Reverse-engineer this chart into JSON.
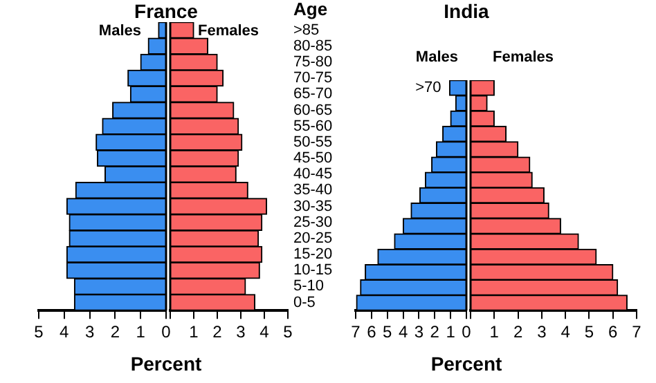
{
  "chart_data": [
    {
      "type": "bar",
      "orientation": "horizontal",
      "title": "France",
      "xlabel": "Percent",
      "grid": false,
      "categories": [
        null,
        null,
        null,
        null,
        null,
        null,
        null,
        null,
        null,
        null,
        null,
        null,
        null,
        null,
        null,
        null,
        null,
        null
      ],
      "series": [
        {
          "name": "Males",
          "color": "#3a8ef0",
          "values": [
            0.3,
            0.7,
            1.0,
            1.5,
            1.4,
            2.1,
            2.5,
            2.75,
            2.7,
            2.4,
            3.55,
            3.9,
            3.8,
            3.8,
            3.9,
            3.9,
            3.6,
            3.6
          ]
        }
      ],
      "xlim": [
        5,
        0
      ],
      "xticks": [
        5,
        4,
        3,
        2,
        1,
        0
      ]
    },
    {
      "type": "bar",
      "orientation": "horizontal",
      "ylabel": "Age",
      "grid": false,
      "categories": [
        ">85",
        "80-85",
        "75-80",
        "70-75",
        "65-70",
        "60-65",
        "55-60",
        "50-55",
        "45-50",
        "40-45",
        "35-40",
        "30-35",
        "25-30",
        "20-25",
        "15-20",
        "10-15",
        "5-10",
        "0-5"
      ],
      "series": [
        {
          "name": "Females",
          "color": "#fa6464",
          "values": [
            1.0,
            1.6,
            2.0,
            2.25,
            2.0,
            2.7,
            2.9,
            3.05,
            2.9,
            2.8,
            3.3,
            4.1,
            3.9,
            3.75,
            3.9,
            3.8,
            3.2,
            3.6
          ]
        }
      ],
      "xlim": [
        0,
        5
      ],
      "xticks": [
        {
          "value": 0,
          "label": null
        },
        1,
        2,
        3,
        4,
        5
      ]
    },
    {
      "type": "bar",
      "orientation": "horizontal",
      "title": "India",
      "xlabel": "Percent",
      "grid": false,
      "categories": [
        ">70",
        null,
        null,
        null,
        null,
        null,
        null,
        null,
        null,
        null,
        null,
        null,
        null,
        null,
        null
      ],
      "series": [
        {
          "name": "Males",
          "color": "#3a8ef0",
          "values": [
            1.07,
            0.68,
            1.0,
            1.5,
            1.9,
            2.2,
            2.6,
            2.95,
            3.5,
            4.0,
            4.55,
            5.6,
            6.4,
            6.7,
            6.95
          ]
        }
      ],
      "xlim": [
        7,
        0
      ],
      "xticks": [
        7,
        6,
        5,
        4,
        3,
        2,
        1,
        0
      ]
    },
    {
      "type": "bar",
      "orientation": "horizontal",
      "grid": false,
      "categories": [
        null,
        null,
        null,
        null,
        null,
        null,
        null,
        null,
        null,
        null,
        null,
        null,
        null,
        null,
        null
      ],
      "series": [
        {
          "name": "Females",
          "color": "#fa6464",
          "values": [
            1.0,
            0.7,
            1.0,
            1.5,
            2.0,
            2.5,
            2.6,
            3.1,
            3.3,
            3.8,
            4.55,
            5.3,
            6.0,
            6.2,
            6.6
          ]
        }
      ],
      "xlim": [
        0,
        7
      ],
      "xticks": [
        {
          "value": 0,
          "label": null
        },
        1,
        2,
        3,
        4,
        5,
        6,
        7
      ]
    }
  ]
}
